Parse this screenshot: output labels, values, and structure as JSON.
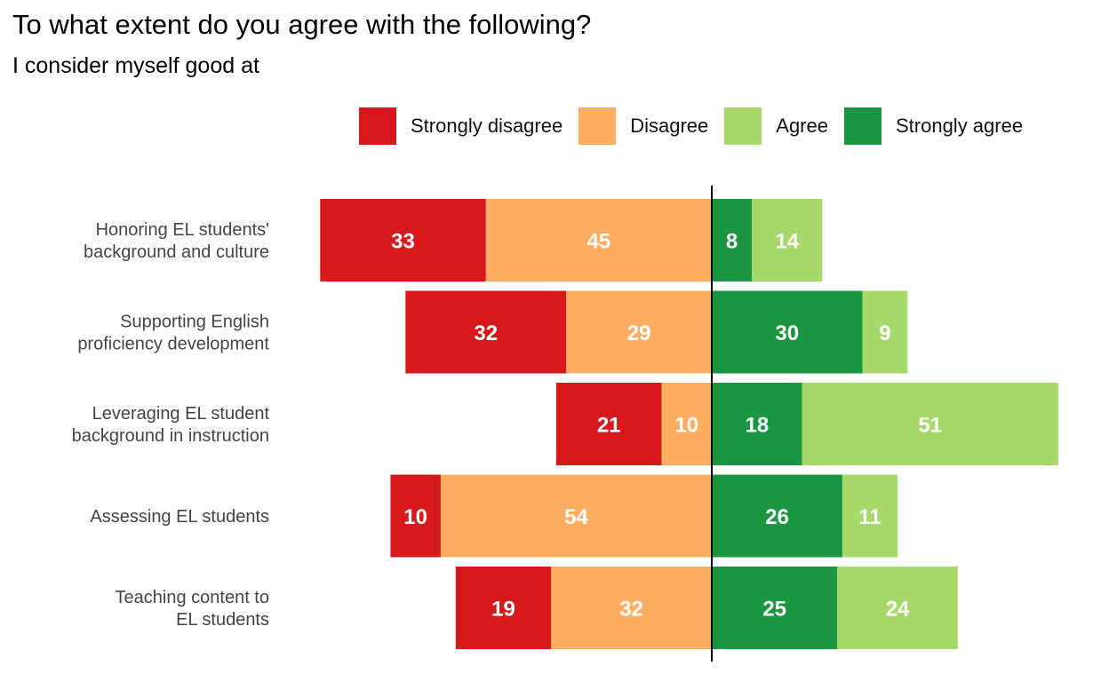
{
  "title": "To what extent do you agree with the following?",
  "subtitle": "I consider myself good at",
  "legend": [
    {
      "label": "Strongly disagree",
      "color": "#D7191C"
    },
    {
      "label": "Disagree",
      "color": "#FDAE61"
    },
    {
      "label": "Agree",
      "color": "#A6D96A"
    },
    {
      "label": "Strongly agree",
      "color": "#1A9641"
    }
  ],
  "chart_data": {
    "type": "bar",
    "orientation": "horizontal",
    "stacking": "diverging",
    "title": "To what extent do you agree with the following?",
    "subtitle": "I consider myself good at",
    "legend_position": "top-right",
    "grid": false,
    "categories": [
      [
        "Honoring EL students'",
        "background and culture"
      ],
      [
        "Supporting English",
        "proficiency development"
      ],
      [
        "Leveraging EL student",
        "background in instruction"
      ],
      [
        "Assessing EL students"
      ],
      [
        "Teaching content to",
        "EL students"
      ]
    ],
    "series": [
      {
        "name": "Strongly disagree",
        "color": "#D7191C",
        "side": "negative",
        "values": [
          33,
          32,
          21,
          10,
          19
        ]
      },
      {
        "name": "Disagree",
        "color": "#FDAE61",
        "side": "negative",
        "values": [
          45,
          29,
          10,
          54,
          32
        ]
      },
      {
        "name": "Strongly agree",
        "color": "#1A9641",
        "side": "positive",
        "values": [
          8,
          30,
          18,
          26,
          25
        ]
      },
      {
        "name": "Agree",
        "color": "#A6D96A",
        "side": "positive",
        "values": [
          14,
          9,
          51,
          11,
          24
        ]
      }
    ]
  }
}
